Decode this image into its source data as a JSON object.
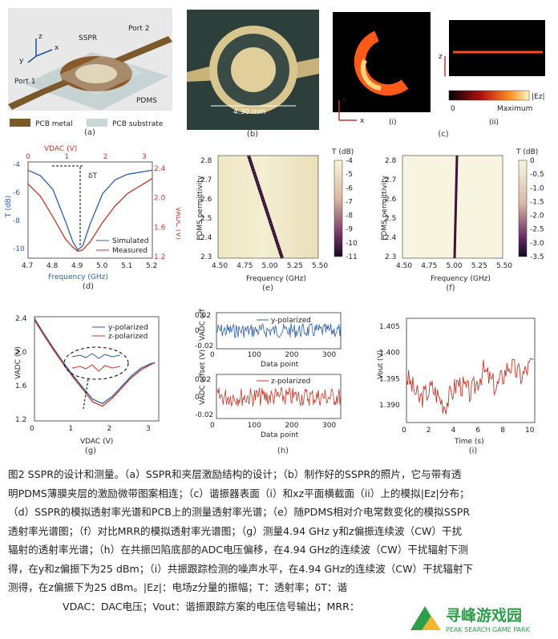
{
  "panel_a": {
    "label": "(a)",
    "axis_z": "z",
    "axis_y": "y",
    "axis_x": "x",
    "sspr": "SSPR",
    "port1": "Port 1",
    "port2": "Port 2",
    "pdms": "PDMS",
    "legend_metal": "PCB metal",
    "legend_substrate": "PCB substrate",
    "colors": {
      "metal": "#7a5a2a",
      "substrate": "#c9d6d6",
      "board": "#c7d3d3",
      "bg": "#e8e8e8"
    }
  },
  "panel_b": {
    "label": "(b)",
    "scale": "4.30 mm"
  },
  "panel_c": {
    "label": "(c)",
    "sub_i": "(i)",
    "sub_ii": "(ii)",
    "axis_y": "y",
    "axis_x": "x",
    "axis_z": "z",
    "colorbar_label": "|Ez|",
    "cb_min": "0",
    "cb_max": "Maximum"
  },
  "panel_d": {
    "label": "(d)",
    "top_axis_label": "VDAC (V)",
    "bottom_axis_label": "Frequency (GHz)",
    "left_axis_label": "T (dB)",
    "right_axis_label": "VADC (V)",
    "annot": "δT",
    "x_ticks": [
      "4.7",
      "4.8",
      "4.9",
      "5.0",
      "5.1",
      "5.2"
    ],
    "top_ticks": [
      "0",
      "1",
      "2",
      "3"
    ],
    "left_ticks": [
      "-4",
      "-6",
      "-8",
      "-10"
    ],
    "right_ticks": [
      "2.4",
      "2.0",
      "1.6",
      "1.2"
    ],
    "legend": [
      "Simulated",
      "Measured"
    ]
  },
  "panel_e": {
    "label": "(e)",
    "xlabel": "Frequency (GHz)",
    "ylabel": "PDMS permittivity",
    "x_ticks": [
      "4.50",
      "4.75",
      "5.00",
      "5.25",
      "5.50"
    ],
    "y_ticks": [
      "2.8",
      "2.7",
      "2.6",
      "2.5",
      "2.4",
      "2.3"
    ],
    "cb_title": "T (dB)",
    "cb_ticks": [
      "-4",
      "-5",
      "-6",
      "-7",
      "-8",
      "-9",
      "-10",
      "-11"
    ]
  },
  "panel_f": {
    "label": "(f)",
    "xlabel": "Frequency (GHz)",
    "ylabel": "PDMS permittivity",
    "x_ticks": [
      "4.50",
      "4.75",
      "5.00",
      "5.25",
      "5.50"
    ],
    "y_ticks": [
      "2.8",
      "2.7",
      "2.6",
      "2.5",
      "2.4",
      "2.3"
    ],
    "cb_title": "T (dB)",
    "cb_ticks": [
      "0",
      "-0.5",
      "-1.0",
      "-1.5",
      "-2.0",
      "-2.5",
      "-3.0",
      "-3.5"
    ]
  },
  "panel_g": {
    "label": "(g)",
    "xlabel": "VDAC (V)",
    "ylabel": "VADC (V)",
    "x_ticks": [
      "0",
      "1",
      "2",
      "3"
    ],
    "y_ticks": [
      "2.4",
      "2.0",
      "1.6",
      "1.2"
    ],
    "legend": [
      "y-polarized",
      "z-polarized"
    ]
  },
  "panel_h": {
    "label": "(h)",
    "top_ylabel": "VADC offset (V)",
    "bottom_ylabel": "VADC offset (V)",
    "xlabel": "Data point",
    "x_ticks": [
      "0",
      "100",
      "200",
      "300"
    ],
    "y_ticks": [
      "0.02",
      "0",
      "-0.02"
    ],
    "top_legend": "y-polarized",
    "bottom_legend": "z-polarized"
  },
  "panel_i": {
    "label": "(i)",
    "xlabel": "Time (s)",
    "ylabel": "Vout (V)",
    "x_ticks": [
      "0",
      "2",
      "4",
      "6",
      "8",
      "10"
    ],
    "y_ticks": [
      "1.405",
      "1.400",
      "1.395",
      "1.390"
    ]
  },
  "chart_data": [
    {
      "panel": "d",
      "type": "line",
      "x": [
        4.7,
        4.75,
        4.8,
        4.85,
        4.88,
        4.9,
        4.92,
        4.95,
        5.0,
        5.05,
        5.1,
        5.2
      ],
      "series": [
        {
          "name": "Simulated",
          "values": [
            -4.6,
            -5.0,
            -6.0,
            -8.3,
            -9.8,
            -10.4,
            -10.1,
            -8.5,
            -6.3,
            -5.3,
            -4.9,
            -4.6
          ]
        },
        {
          "name": "Measured",
          "values": [
            -5.6,
            -6.5,
            -8.0,
            -9.6,
            -10.2,
            -10.5,
            -10.4,
            -9.8,
            -8.4,
            -7.2,
            -6.3,
            -5.2
          ]
        }
      ],
      "xlim": [
        4.7,
        5.2
      ],
      "ylim": [
        -11,
        -4
      ]
    },
    {
      "panel": "g",
      "type": "line",
      "x": [
        0,
        0.25,
        0.5,
        0.75,
        1.0,
        1.25,
        1.5,
        1.75,
        2.0,
        2.25,
        2.5,
        2.75,
        3.0,
        3.1
      ],
      "series": [
        {
          "name": "y-polarized",
          "values": [
            2.38,
            2.2,
            2.03,
            1.87,
            1.72,
            1.58,
            1.45,
            1.4,
            1.48,
            1.6,
            1.72,
            1.81,
            1.86,
            1.87
          ]
        },
        {
          "name": "z-polarized",
          "values": [
            2.36,
            2.18,
            2.01,
            1.85,
            1.7,
            1.56,
            1.42,
            1.37,
            1.46,
            1.58,
            1.7,
            1.79,
            1.85,
            1.87
          ]
        }
      ],
      "xlim": [
        0,
        3.2
      ],
      "ylim": [
        1.2,
        2.4
      ]
    },
    {
      "panel": "i",
      "type": "line",
      "x": [
        0,
        1,
        2,
        3,
        4,
        5,
        6,
        7,
        8,
        9,
        10
      ],
      "values": [
        1.396,
        1.392,
        1.394,
        1.391,
        1.395,
        1.393,
        1.397,
        1.394,
        1.398,
        1.396,
        1.399
      ],
      "xlim": [
        0,
        10
      ],
      "ylim": [
        1.388,
        1.406
      ]
    }
  ],
  "caption": {
    "line1": "图2 SSPR的设计和测量。（a）SSPR和夹层激励结构的设计；（b）制作好的SSPR的照片，它与带有透",
    "line2": "明PDMS薄膜夹层的激励微带图案相连；（c）谐振器表面（i）和xz平面横截面（ii）上的模拟|Ez|分布；",
    "line3": "（d）SSPR的模拟透射率光谱和PCB上的测量透射率光谱；（e）随PDMS相对介电常数变化的模拟SSPR",
    "line4": "透射率光谱图；（f）对比MRR的模拟透射率光谱图；（g）测量4.94 GHz y和z偏振连续波（CW）干扰",
    "line5": "辐射的透射率光谱；（h）在共振凹陷底部的ADC电压偏移，在4.94 GHz的连续波（CW）干扰辐射下测",
    "line6": "得，在y和z偏振下为25 dBm；（i）共振跟踪检测的噪声水平，在4.94 GHz的连续波（CW）干扰辐射下",
    "line7": "测得，在z偏振下为25 dBm。|Ez|：电场z分量的振幅；T：透射率；δT：谐",
    "line8": "VDAC：DAC电压；Vout：谐振跟踪方案的电压信号输出；MRR："
  },
  "watermark": {
    "title": "寻峰游戏园",
    "subtitle": "PEAK SEARCH GAME PARK"
  }
}
